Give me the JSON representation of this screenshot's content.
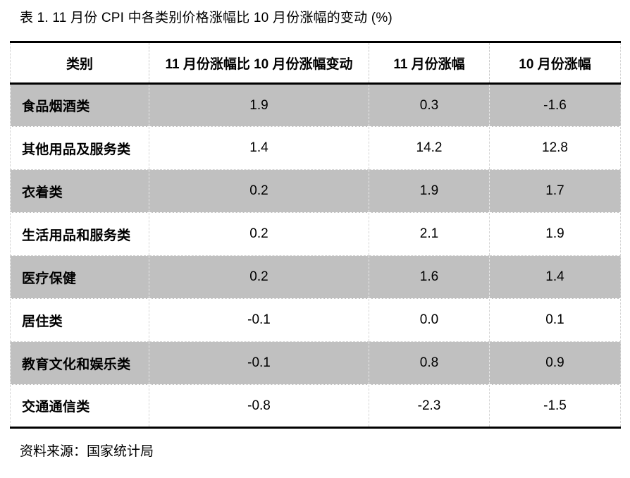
{
  "title": "表 1. 11 月份 CPI 中各类别价格涨幅比 10 月份涨幅的变动 (%)",
  "source_note": "资料来源：国家统计局",
  "colors": {
    "row_shade": "#c0c0c0",
    "rule_color": "#000000",
    "grid_dash": "#d4d4d4"
  },
  "table": {
    "headers": [
      "类别",
      "11 月份涨幅比 10 月份涨幅变动",
      "11 月份涨幅",
      "10 月份涨幅"
    ],
    "rows": [
      {
        "category": "食品烟酒类",
        "change": "1.9",
        "nov": "0.3",
        "oct": "-1.6"
      },
      {
        "category": "其他用品及服务类",
        "change": "1.4",
        "nov": "14.2",
        "oct": "12.8"
      },
      {
        "category": "衣着类",
        "change": "0.2",
        "nov": "1.9",
        "oct": "1.7"
      },
      {
        "category": "生活用品和服务类",
        "change": "0.2",
        "nov": "2.1",
        "oct": "1.9"
      },
      {
        "category": "医疗保健",
        "change": "0.2",
        "nov": "1.6",
        "oct": "1.4"
      },
      {
        "category": "居住类",
        "change": "-0.1",
        "nov": "0.0",
        "oct": "0.1"
      },
      {
        "category": "教育文化和娱乐类",
        "change": "-0.1",
        "nov": "0.8",
        "oct": "0.9"
      },
      {
        "category": "交通通信类",
        "change": "-0.8",
        "nov": "-2.3",
        "oct": "-1.5"
      }
    ]
  },
  "chart_data": {
    "type": "table",
    "title": "表 1. 11 月份 CPI 中各类别价格涨幅比 10 月份涨幅的变动 (%)",
    "columns": [
      "类别",
      "11 月份涨幅比 10 月份涨幅变动",
      "11 月份涨幅",
      "10 月份涨幅"
    ],
    "rows": [
      [
        "食品烟酒类",
        1.9,
        0.3,
        -1.6
      ],
      [
        "其他用品及服务类",
        1.4,
        14.2,
        12.8
      ],
      [
        "衣着类",
        0.2,
        1.9,
        1.7
      ],
      [
        "生活用品和服务类",
        0.2,
        2.1,
        1.9
      ],
      [
        "医疗保健",
        0.2,
        1.6,
        1.4
      ],
      [
        "居住类",
        -0.1,
        0.0,
        0.1
      ],
      [
        "教育文化和娱乐类",
        -0.1,
        0.8,
        0.9
      ],
      [
        "交通通信类",
        -0.8,
        -2.3,
        -1.5
      ]
    ],
    "source": "资料来源：国家统计局",
    "layout_hints": {
      "shaded_row_indexes": [
        0,
        2,
        4,
        6
      ],
      "value_alignment": "center",
      "category_alignment": "left"
    }
  }
}
